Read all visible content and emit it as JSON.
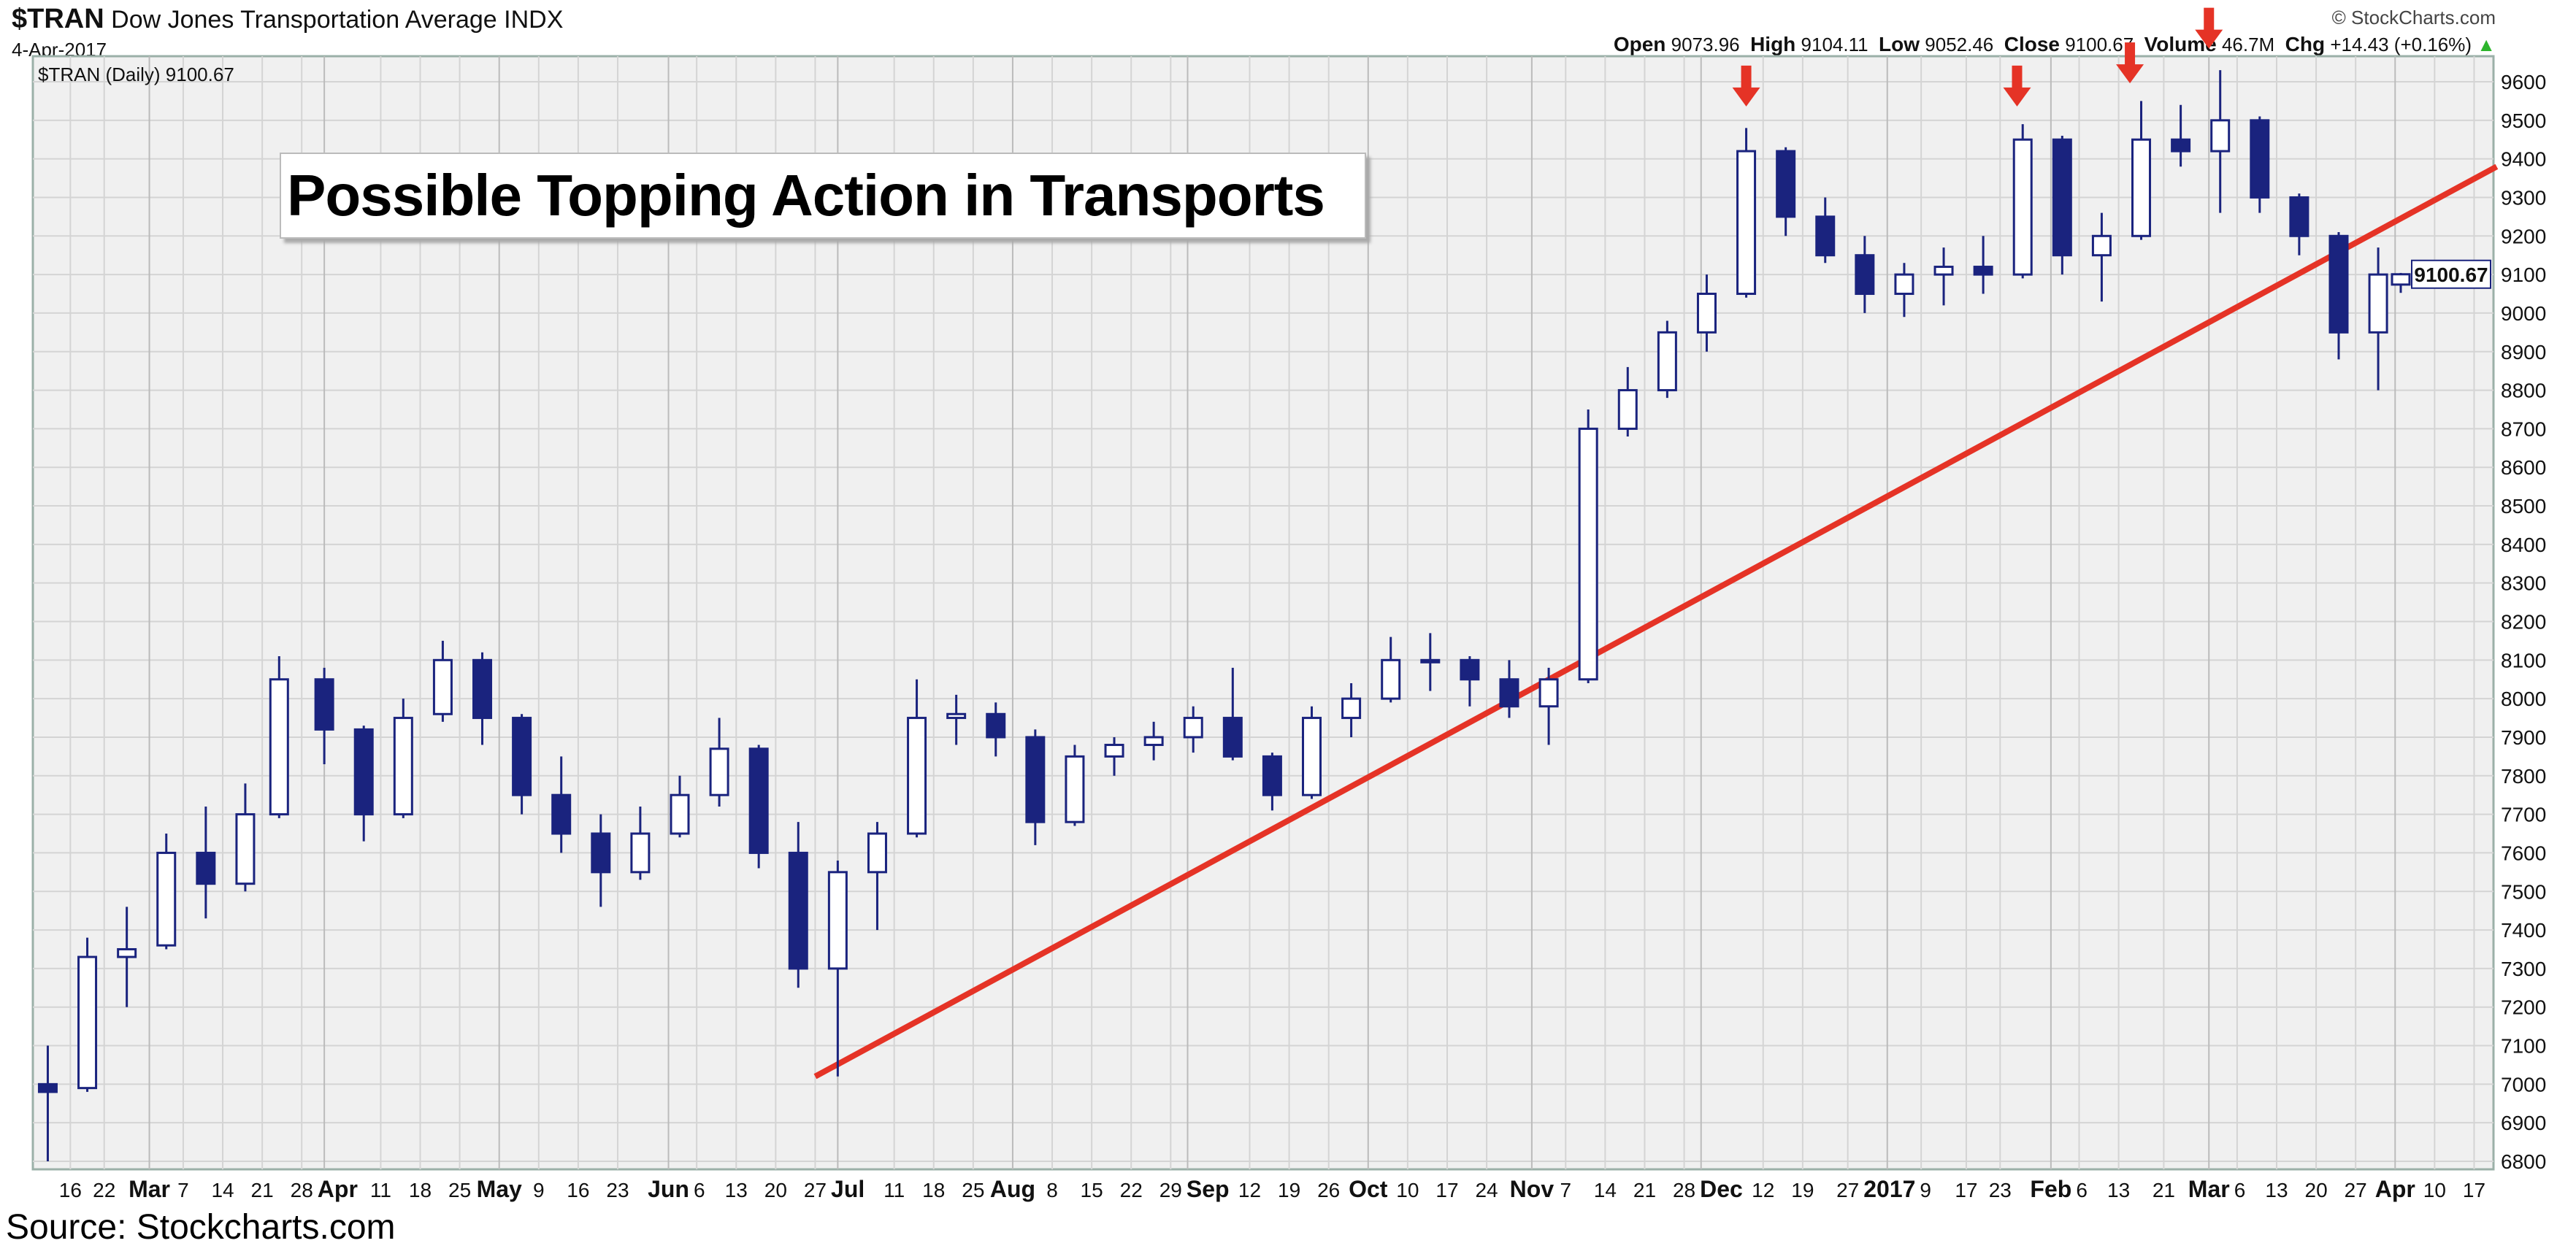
{
  "header": {
    "symbol": "$TRAN",
    "name": "Dow Jones Transportation Average INDX",
    "date": "4-Apr-2017",
    "copyright": "© StockCharts.com",
    "open_label": "Open",
    "open": "9073.96",
    "high_label": "High",
    "high": "9104.11",
    "low_label": "Low",
    "low": "9052.46",
    "close_label": "Close",
    "close": "9100.67",
    "volume_label": "Volume",
    "volume": "46.7M",
    "chg_label": "Chg",
    "chg": "+14.43 (+0.16%)",
    "chg_arrow": "▲",
    "legend": "$TRAN (Daily) 9100.67"
  },
  "annotation_title": "Possible Topping Action in Transports",
  "source": "Source: Stockcharts.com",
  "colors": {
    "candle": "#1a237e",
    "trendline": "#e53326",
    "arrow": "#e53326",
    "plot_bg": "#f0f0f0",
    "grid": "#d4d4d4"
  },
  "chart_data": {
    "type": "candlestick",
    "title": "$TRAN Dow Jones Transportation Average INDX",
    "ylim": [
      6750,
      9680
    ],
    "y_ticks": [
      6800,
      6900,
      7000,
      7100,
      7200,
      7300,
      7400,
      7500,
      7600,
      7700,
      7800,
      7900,
      8000,
      8100,
      8200,
      8300,
      8400,
      8500,
      8600,
      8700,
      8800,
      8900,
      9000,
      9100,
      9200,
      9300,
      9400,
      9500,
      9600
    ],
    "x_range": [
      "2016-02-10",
      "2017-04-04"
    ],
    "last_price_label": "9100.67",
    "x_ticks": [
      {
        "d": "2016-02-16",
        "t": "16"
      },
      {
        "d": "2016-02-22",
        "t": "22"
      },
      {
        "d": "2016-03-01",
        "t": "Mar",
        "m": true
      },
      {
        "d": "2016-03-07",
        "t": "7"
      },
      {
        "d": "2016-03-14",
        "t": "14"
      },
      {
        "d": "2016-03-21",
        "t": "21"
      },
      {
        "d": "2016-03-28",
        "t": "28"
      },
      {
        "d": "2016-04-01",
        "t": "Apr",
        "m": true
      },
      {
        "d": "2016-04-11",
        "t": "11"
      },
      {
        "d": "2016-04-18",
        "t": "18"
      },
      {
        "d": "2016-04-25",
        "t": "25"
      },
      {
        "d": "2016-05-02",
        "t": "May",
        "m": true
      },
      {
        "d": "2016-05-09",
        "t": "9"
      },
      {
        "d": "2016-05-16",
        "t": "16"
      },
      {
        "d": "2016-05-23",
        "t": "23"
      },
      {
        "d": "2016-06-01",
        "t": "Jun",
        "m": true
      },
      {
        "d": "2016-06-06",
        "t": "6"
      },
      {
        "d": "2016-06-13",
        "t": "13"
      },
      {
        "d": "2016-06-20",
        "t": "20"
      },
      {
        "d": "2016-06-27",
        "t": "27"
      },
      {
        "d": "2016-07-01",
        "t": "Jul",
        "m": true
      },
      {
        "d": "2016-07-11",
        "t": "11"
      },
      {
        "d": "2016-07-18",
        "t": "18"
      },
      {
        "d": "2016-07-25",
        "t": "25"
      },
      {
        "d": "2016-08-01",
        "t": "Aug",
        "m": true
      },
      {
        "d": "2016-08-08",
        "t": "8"
      },
      {
        "d": "2016-08-15",
        "t": "15"
      },
      {
        "d": "2016-08-22",
        "t": "22"
      },
      {
        "d": "2016-08-29",
        "t": "29"
      },
      {
        "d": "2016-09-01",
        "t": "Sep",
        "m": true
      },
      {
        "d": "2016-09-12",
        "t": "12"
      },
      {
        "d": "2016-09-19",
        "t": "19"
      },
      {
        "d": "2016-09-26",
        "t": "26"
      },
      {
        "d": "2016-10-03",
        "t": "Oct",
        "m": true
      },
      {
        "d": "2016-10-10",
        "t": "10"
      },
      {
        "d": "2016-10-17",
        "t": "17"
      },
      {
        "d": "2016-10-24",
        "t": "24"
      },
      {
        "d": "2016-11-01",
        "t": "Nov",
        "m": true
      },
      {
        "d": "2016-11-07",
        "t": "7"
      },
      {
        "d": "2016-11-14",
        "t": "14"
      },
      {
        "d": "2016-11-21",
        "t": "21"
      },
      {
        "d": "2016-11-28",
        "t": "28"
      },
      {
        "d": "2016-12-01",
        "t": "Dec",
        "m": true
      },
      {
        "d": "2016-12-12",
        "t": "12"
      },
      {
        "d": "2016-12-19",
        "t": "19"
      },
      {
        "d": "2016-12-27",
        "t": "27"
      },
      {
        "d": "2017-01-03",
        "t": "2017",
        "m": true
      },
      {
        "d": "2017-01-09",
        "t": "9"
      },
      {
        "d": "2017-01-17",
        "t": "17"
      },
      {
        "d": "2017-01-23",
        "t": "23"
      },
      {
        "d": "2017-02-01",
        "t": "Feb",
        "m": true
      },
      {
        "d": "2017-02-06",
        "t": "6"
      },
      {
        "d": "2017-02-13",
        "t": "13"
      },
      {
        "d": "2017-02-21",
        "t": "21"
      },
      {
        "d": "2017-03-01",
        "t": "Mar",
        "m": true
      },
      {
        "d": "2017-03-06",
        "t": "6"
      },
      {
        "d": "2017-03-13",
        "t": "13"
      },
      {
        "d": "2017-03-20",
        "t": "20"
      },
      {
        "d": "2017-03-27",
        "t": "27"
      },
      {
        "d": "2017-04-03",
        "t": "Apr",
        "m": true
      },
      {
        "d": "2017-04-10",
        "t": "10"
      },
      {
        "d": "2017-04-17",
        "t": "17"
      }
    ],
    "candles_weekly_ohlc": [
      [
        "2016-02-12",
        7000,
        7100,
        6800,
        6980
      ],
      [
        "2016-02-19",
        6990,
        7380,
        6980,
        7330
      ],
      [
        "2016-02-26",
        7330,
        7460,
        7200,
        7350
      ],
      [
        "2016-03-04",
        7360,
        7650,
        7350,
        7600
      ],
      [
        "2016-03-11",
        7600,
        7720,
        7430,
        7520
      ],
      [
        "2016-03-18",
        7520,
        7780,
        7500,
        7700
      ],
      [
        "2016-03-24",
        7700,
        8110,
        7690,
        8050
      ],
      [
        "2016-04-01",
        8050,
        8080,
        7830,
        7920
      ],
      [
        "2016-04-08",
        7920,
        7930,
        7630,
        7700
      ],
      [
        "2016-04-15",
        7700,
        8000,
        7690,
        7950
      ],
      [
        "2016-04-22",
        7960,
        8150,
        7940,
        8100
      ],
      [
        "2016-04-29",
        8100,
        8120,
        7880,
        7950
      ],
      [
        "2016-05-06",
        7950,
        7960,
        7700,
        7750
      ],
      [
        "2016-05-13",
        7750,
        7850,
        7600,
        7650
      ],
      [
        "2016-05-20",
        7650,
        7700,
        7460,
        7550
      ],
      [
        "2016-05-27",
        7550,
        7720,
        7530,
        7650
      ],
      [
        "2016-06-03",
        7650,
        7800,
        7640,
        7750
      ],
      [
        "2016-06-10",
        7750,
        7950,
        7720,
        7870
      ],
      [
        "2016-06-17",
        7870,
        7880,
        7560,
        7600
      ],
      [
        "2016-06-24",
        7600,
        7680,
        7250,
        7300
      ],
      [
        "2016-07-01",
        7300,
        7580,
        7020,
        7550
      ],
      [
        "2016-07-08",
        7550,
        7680,
        7400,
        7650
      ],
      [
        "2016-07-15",
        7650,
        8050,
        7640,
        7950
      ],
      [
        "2016-07-22",
        7950,
        8010,
        7880,
        7960
      ],
      [
        "2016-07-29",
        7960,
        7990,
        7850,
        7900
      ],
      [
        "2016-08-05",
        7900,
        7920,
        7620,
        7680
      ],
      [
        "2016-08-12",
        7680,
        7880,
        7670,
        7850
      ],
      [
        "2016-08-19",
        7850,
        7900,
        7800,
        7880
      ],
      [
        "2016-08-26",
        7880,
        7940,
        7840,
        7900
      ],
      [
        "2016-09-02",
        7900,
        7980,
        7860,
        7950
      ],
      [
        "2016-09-09",
        7950,
        8080,
        7840,
        7850
      ],
      [
        "2016-09-16",
        7850,
        7860,
        7710,
        7750
      ],
      [
        "2016-09-23",
        7750,
        7980,
        7740,
        7950
      ],
      [
        "2016-09-30",
        7950,
        8040,
        7900,
        8000
      ],
      [
        "2016-10-07",
        8000,
        8160,
        7990,
        8100
      ],
      [
        "2016-10-14",
        8100,
        8170,
        8020,
        8100
      ],
      [
        "2016-10-21",
        8100,
        8110,
        7980,
        8050
      ],
      [
        "2016-10-28",
        8050,
        8100,
        7950,
        7980
      ],
      [
        "2016-11-04",
        7980,
        8080,
        7880,
        8050
      ],
      [
        "2016-11-11",
        8050,
        8750,
        8040,
        8700
      ],
      [
        "2016-11-18",
        8700,
        8860,
        8680,
        8800
      ],
      [
        "2016-11-25",
        8800,
        8980,
        8780,
        8950
      ],
      [
        "2016-12-02",
        8950,
        9100,
        8900,
        9050
      ],
      [
        "2016-12-09",
        9050,
        9480,
        9040,
        9420
      ],
      [
        "2016-12-16",
        9420,
        9430,
        9200,
        9250
      ],
      [
        "2016-12-23",
        9250,
        9300,
        9130,
        9150
      ],
      [
        "2016-12-30",
        9150,
        9200,
        9000,
        9050
      ],
      [
        "2017-01-06",
        9050,
        9130,
        8990,
        9100
      ],
      [
        "2017-01-13",
        9100,
        9170,
        9020,
        9120
      ],
      [
        "2017-01-20",
        9120,
        9200,
        9050,
        9100
      ],
      [
        "2017-01-27",
        9100,
        9490,
        9090,
        9450
      ],
      [
        "2017-02-03",
        9450,
        9460,
        9100,
        9150
      ],
      [
        "2017-02-10",
        9150,
        9260,
        9030,
        9200
      ],
      [
        "2017-02-17",
        9200,
        9550,
        9190,
        9450
      ],
      [
        "2017-02-24",
        9450,
        9540,
        9380,
        9420
      ],
      [
        "2017-03-03",
        9420,
        9630,
        9260,
        9500
      ],
      [
        "2017-03-10",
        9500,
        9510,
        9260,
        9300
      ],
      [
        "2017-03-17",
        9300,
        9310,
        9150,
        9200
      ],
      [
        "2017-03-24",
        9200,
        9210,
        8880,
        8950
      ],
      [
        "2017-03-31",
        8950,
        9170,
        8800,
        9100
      ],
      [
        "2017-04-04",
        9073.96,
        9104.11,
        9052.46,
        9100.67
      ]
    ],
    "trendline": {
      "from": [
        "2016-06-27",
        7020
      ],
      "to": [
        "2017-04-21",
        9380
      ]
    },
    "top_arrows": [
      [
        "2016-12-09",
        9500
      ],
      [
        "2017-01-26",
        9500
      ],
      [
        "2017-02-15",
        9560
      ],
      [
        "2017-03-01",
        9650
      ]
    ]
  }
}
